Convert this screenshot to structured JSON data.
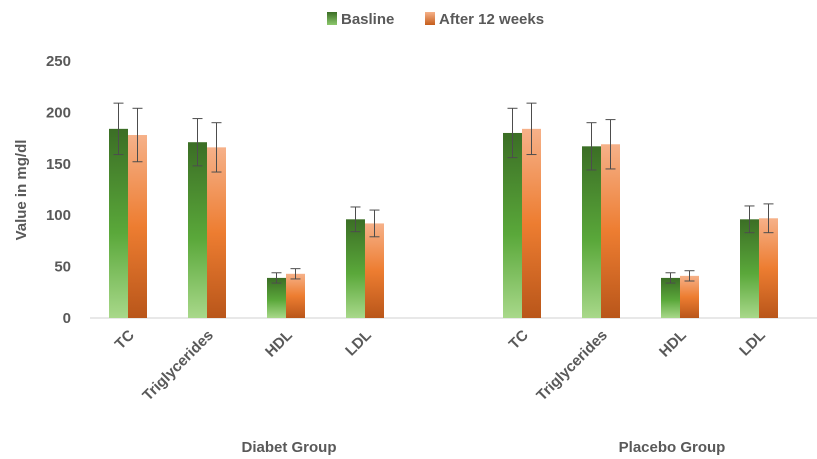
{
  "chart_data": {
    "type": "bar",
    "title": "",
    "ylabel": "Value in mg/dl",
    "xlabel": "",
    "ylim": [
      0,
      250
    ],
    "yticks": [
      "0",
      "50",
      "100",
      "150",
      "200",
      "250"
    ],
    "grid": false,
    "legend_position": "top",
    "groups": [
      {
        "name": "Diabet Group",
        "categories": [
          "TC",
          "Triglycerides",
          "HDL",
          "LDL"
        ]
      },
      {
        "name": "Placebo Group",
        "categories": [
          "TC",
          "Triglycerides",
          "HDL",
          "LDL"
        ]
      }
    ],
    "series": [
      {
        "name": "Basline",
        "color": "#4e9a2f",
        "values": [
          184,
          171,
          39,
          96,
          180,
          167,
          39,
          96
        ],
        "errors": [
          25,
          23,
          5,
          12,
          24,
          23,
          5,
          13
        ]
      },
      {
        "name": "After 12 weeks",
        "color": "#e8742c",
        "values": [
          178,
          166,
          43,
          92,
          184,
          169,
          41,
          97
        ],
        "errors": [
          26,
          24,
          5,
          13,
          25,
          24,
          5,
          14
        ]
      }
    ]
  }
}
